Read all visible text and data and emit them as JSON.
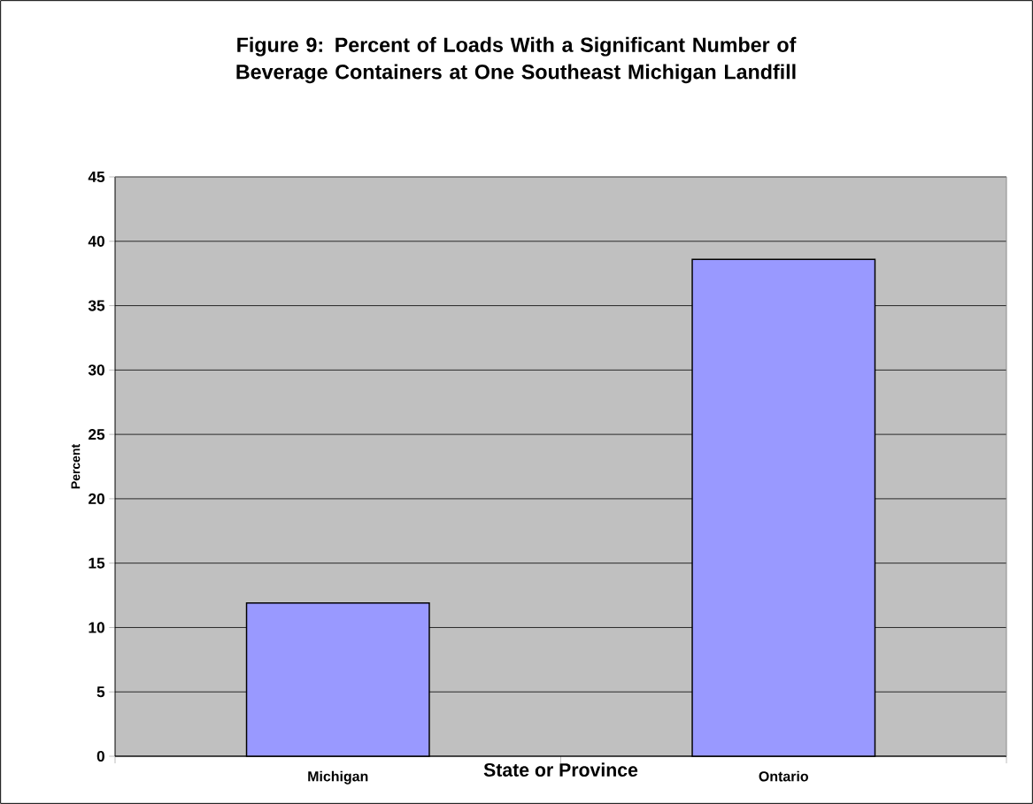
{
  "chart_data": {
    "type": "bar",
    "title": "Figure 9: Percent of Loads With a Significant Number of Beverage Containers at One Southeast Michigan Landfill",
    "xlabel": "State or Province",
    "ylabel": "Percent",
    "categories": [
      "Michigan",
      "Ontario"
    ],
    "values": [
      11.9,
      38.6
    ],
    "color": "#9999ff",
    "ylim": [
      0,
      45
    ],
    "yticks": [
      0,
      5,
      10,
      15,
      20,
      25,
      30,
      35,
      40,
      45
    ],
    "grid": "y"
  }
}
